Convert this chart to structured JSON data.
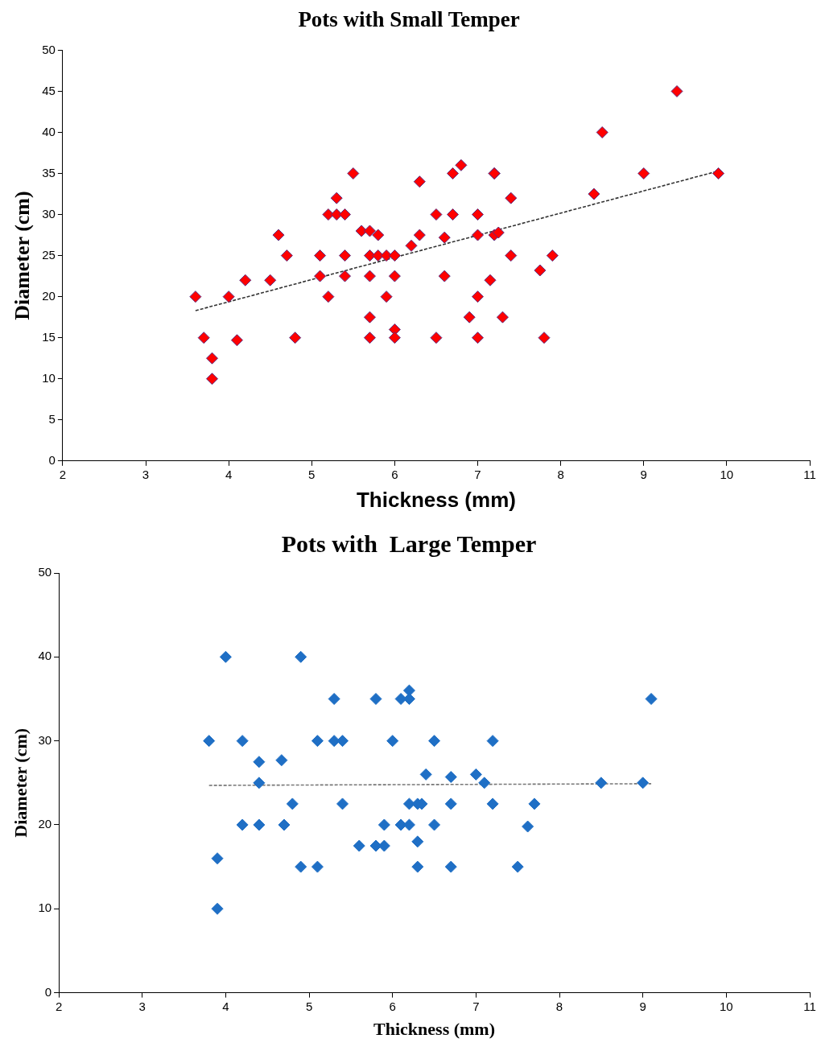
{
  "chart_data": [
    {
      "type": "scatter",
      "title": "Pots with Small Temper",
      "xlabel": "Thickness (mm)",
      "ylabel": "Diameter (cm)",
      "xlim": [
        2,
        11
      ],
      "xticks": [
        2,
        3,
        4,
        5,
        6,
        7,
        8,
        9,
        10,
        11
      ],
      "ylim": [
        0,
        50
      ],
      "yticks": [
        0,
        5,
        10,
        15,
        20,
        25,
        30,
        35,
        40,
        45,
        50
      ],
      "grid": false,
      "legend": false,
      "marker": "diamond",
      "series": [
        {
          "color": "#ff0000",
          "x": [
            3.6,
            3.7,
            3.8,
            3.8,
            4.0,
            4.1,
            4.2,
            4.5,
            4.6,
            4.7,
            4.8,
            5.1,
            5.1,
            5.2,
            5.2,
            5.3,
            5.3,
            5.4,
            5.4,
            5.4,
            5.5,
            5.6,
            5.7,
            5.7,
            5.7,
            5.7,
            5.7,
            5.8,
            5.8,
            5.9,
            5.9,
            6.0,
            6.0,
            6.0,
            6.0,
            6.2,
            6.3,
            6.3,
            6.5,
            6.5,
            6.6,
            6.6,
            6.7,
            6.7,
            6.8,
            6.9,
            7.0,
            7.0,
            7.0,
            7.0,
            7.2,
            7.2,
            7.2,
            7.25,
            7.15,
            7.3,
            7.4,
            7.4,
            7.75,
            7.8,
            7.9,
            8.4,
            8.5,
            9.0,
            9.4,
            9.9
          ],
          "values": [
            20,
            15,
            12.5,
            10,
            20,
            14.7,
            22,
            22,
            27.5,
            25,
            15,
            25,
            22.5,
            20,
            30,
            30,
            32,
            30,
            25,
            22.5,
            35,
            28,
            28,
            25,
            22.5,
            17.5,
            15,
            27.5,
            25,
            25,
            20,
            25,
            22.5,
            16,
            15,
            26.2,
            27.5,
            34,
            30,
            15,
            27.2,
            22.5,
            35,
            30,
            36,
            17.5,
            30,
            27.5,
            20,
            15,
            35,
            35,
            27.5,
            27.8,
            22,
            17.5,
            32,
            25,
            23.2,
            15,
            25,
            32.5,
            40,
            35,
            45,
            35
          ]
        },
        {
          "type": "line",
          "color": "#333333",
          "line_style": "dashed",
          "marker": "none",
          "x": [
            3.6,
            9.9
          ],
          "values": [
            18.3,
            35.3
          ]
        }
      ]
    },
    {
      "type": "scatter",
      "title": "Pots with  Large Temper",
      "xlabel": "Thickness (mm)",
      "ylabel": "Diameter (cm)",
      "xlim": [
        2,
        11
      ],
      "xticks": [
        2,
        3,
        4,
        5,
        6,
        7,
        8,
        9,
        10,
        11
      ],
      "ylim": [
        0,
        50
      ],
      "yticks": [
        0,
        10,
        20,
        30,
        40,
        50
      ],
      "grid": false,
      "legend": false,
      "marker": "diamond",
      "series": [
        {
          "color": "#1f6fc5",
          "x": [
            3.8,
            3.9,
            3.9,
            4.0,
            4.2,
            4.2,
            4.4,
            4.4,
            4.4,
            4.67,
            4.7,
            4.8,
            4.9,
            4.9,
            5.1,
            5.1,
            5.3,
            5.3,
            5.4,
            5.4,
            5.6,
            5.8,
            5.8,
            5.9,
            5.9,
            6.0,
            6.1,
            6.1,
            6.2,
            6.2,
            6.2,
            6.2,
            6.3,
            6.3,
            6.3,
            6.35,
            6.4,
            6.5,
            6.5,
            6.7,
            6.7,
            6.7,
            7.0,
            7.1,
            7.2,
            7.2,
            7.5,
            7.62,
            7.7,
            8.5,
            9.0,
            9.1
          ],
          "values": [
            30,
            16,
            10,
            40,
            30,
            20,
            27.5,
            25,
            20,
            27.7,
            20,
            22.5,
            40,
            15,
            30,
            15,
            35,
            30,
            30,
            22.5,
            17.5,
            35,
            17.5,
            20,
            17.5,
            30,
            35,
            20,
            36,
            35,
            22.5,
            20,
            22.5,
            18,
            15,
            22.5,
            26,
            30,
            20,
            25.7,
            22.5,
            15,
            26,
            25,
            30,
            22.5,
            15,
            19.8,
            22.5,
            25,
            25,
            35
          ]
        },
        {
          "type": "line",
          "color": "#777777",
          "line_style": "dashed",
          "marker": "none",
          "x": [
            3.8,
            9.1
          ],
          "values": [
            24.7,
            24.9
          ]
        }
      ]
    }
  ]
}
